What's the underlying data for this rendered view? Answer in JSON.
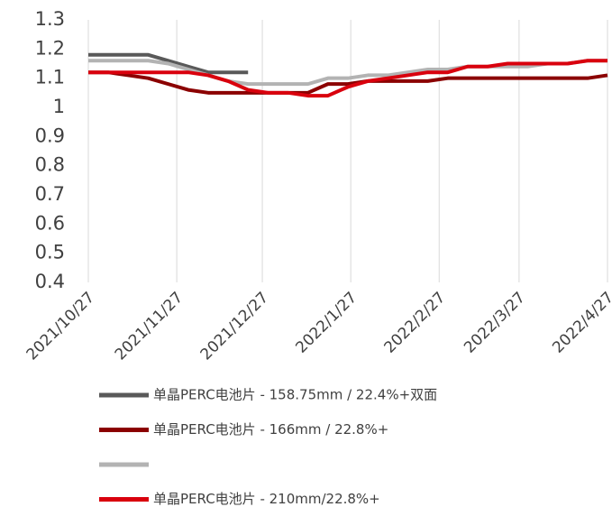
{
  "chart_data": {
    "type": "line",
    "x": [
      "2021/10/27",
      "2021/11/3",
      "2021/11/10",
      "2021/11/17",
      "2021/11/24",
      "2021/12/1",
      "2021/12/8",
      "2021/12/15",
      "2021/12/22",
      "2021/12/29",
      "2022/1/5",
      "2022/1/12",
      "2022/1/19",
      "2022/1/26",
      "2022/2/2",
      "2022/2/9",
      "2022/2/16",
      "2022/2/23",
      "2022/3/2",
      "2022/3/9",
      "2022/3/16",
      "2022/3/23",
      "2022/3/30",
      "2022/4/6",
      "2022/4/13",
      "2022/4/20",
      "2022/4/27"
    ],
    "series": [
      {
        "name": "单晶PERC电池片 - 158.75mm / 22.4%+双面",
        "color": "#595959",
        "values": [
          1.18,
          1.18,
          1.18,
          1.18,
          1.16,
          1.14,
          1.12,
          1.12,
          1.12,
          null,
          null,
          null,
          null,
          null,
          null,
          null,
          null,
          null,
          null,
          null,
          null,
          null,
          null,
          null,
          null,
          null,
          null
        ]
      },
      {
        "name": "单晶PERC电池片 - 166mm / 22.8%+",
        "color": "#8b0000",
        "values": [
          1.12,
          1.12,
          1.11,
          1.1,
          1.08,
          1.06,
          1.05,
          1.05,
          1.05,
          1.05,
          1.05,
          1.05,
          1.08,
          1.08,
          1.09,
          1.09,
          1.09,
          1.09,
          1.1,
          1.1,
          1.1,
          1.1,
          1.1,
          1.1,
          1.1,
          1.1,
          1.11
        ]
      },
      {
        "color": "#b3b3b3",
        "values": [
          1.16,
          1.16,
          1.16,
          1.16,
          1.15,
          1.13,
          1.11,
          1.09,
          1.08,
          1.08,
          1.08,
          1.08,
          1.1,
          1.1,
          1.11,
          1.11,
          1.12,
          1.13,
          1.13,
          1.14,
          1.14,
          1.14,
          1.14,
          1.15,
          1.15,
          1.16,
          1.16
        ]
      },
      {
        "name": "单晶PERC电池片 - 210mm/22.8%+",
        "color": "#d9000d",
        "values": [
          1.12,
          1.12,
          1.12,
          1.12,
          1.12,
          1.12,
          1.11,
          1.09,
          1.06,
          1.05,
          1.05,
          1.04,
          1.04,
          1.07,
          1.09,
          1.1,
          1.11,
          1.12,
          1.12,
          1.14,
          1.14,
          1.15,
          1.15,
          1.15,
          1.15,
          1.16,
          1.16
        ]
      }
    ],
    "xlim": [
      "2021/10/27",
      "2022/4/27"
    ],
    "xticks": [
      "2021/10/27",
      "2021/11/27",
      "2021/12/27",
      "2022/1/27",
      "2022/2/27",
      "2022/3/27",
      "2022/4/27"
    ],
    "ylim": [
      0.4,
      1.3
    ],
    "yticks": [
      0.4,
      0.5,
      0.6,
      0.7,
      0.8,
      0.9,
      1,
      1.1,
      1.2,
      1.3
    ],
    "grid": "x"
  }
}
